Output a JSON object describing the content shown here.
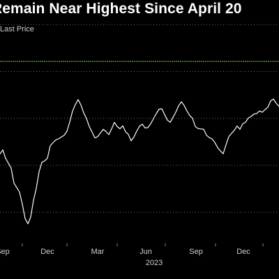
{
  "chart_data": {
    "type": "line",
    "title": "Remain Near Highest Since April 20",
    "legend": [
      {
        "name": "Last Price",
        "color": "#ffffff"
      }
    ],
    "x_tick_labels": [
      "Sep",
      "Dec",
      "Mar",
      "Jun",
      "Sep",
      "Dec"
    ],
    "year_label": "2023",
    "ylim": [
      0,
      100
    ],
    "grid": true,
    "reference_line": {
      "value": 80.3,
      "color": "#8fd14f"
    },
    "series": [
      {
        "values": [
          38.5,
          40.8,
          36.2,
          33.5,
          30.8,
          22.7,
          20.2,
          17.7,
          11.2,
          3.3,
          0.4,
          4.2,
          13.2,
          19.8,
          28.8,
          34.0,
          34.8,
          36.2,
          43.0,
          44.7,
          46.2,
          46.8,
          47.8,
          48.7,
          51.0,
          56.0,
          61.9,
          65.5,
          68.2,
          65.3,
          61.0,
          57.8,
          53.5,
          50.5,
          47.3,
          48.0,
          50.0,
          52.0,
          50.8,
          49.1,
          52.2,
          55.8,
          53.5,
          52.3,
          53.9,
          50.7,
          49.2,
          45.7,
          47.8,
          51.0,
          53.7,
          54.8,
          52.7,
          52.9,
          55.0,
          57.8,
          60.5,
          63.0,
          63.2,
          60.0,
          57.0,
          55.8,
          58.5,
          61.3,
          64.8,
          67.0,
          65.0,
          62.0,
          59.5,
          58.0,
          53.5,
          52.4,
          52.2,
          52.0,
          48.8,
          47.5,
          46.8,
          44.8,
          42.0,
          40.2,
          38.7,
          43.5,
          48.0,
          49.8,
          51.5,
          53.8,
          52.0,
          55.0,
          55.8,
          58.2,
          59.0,
          60.3,
          60.6,
          62.0,
          61.3,
          62.8,
          64.0,
          67.5,
          68.5,
          66.2,
          64.5
        ]
      }
    ]
  }
}
